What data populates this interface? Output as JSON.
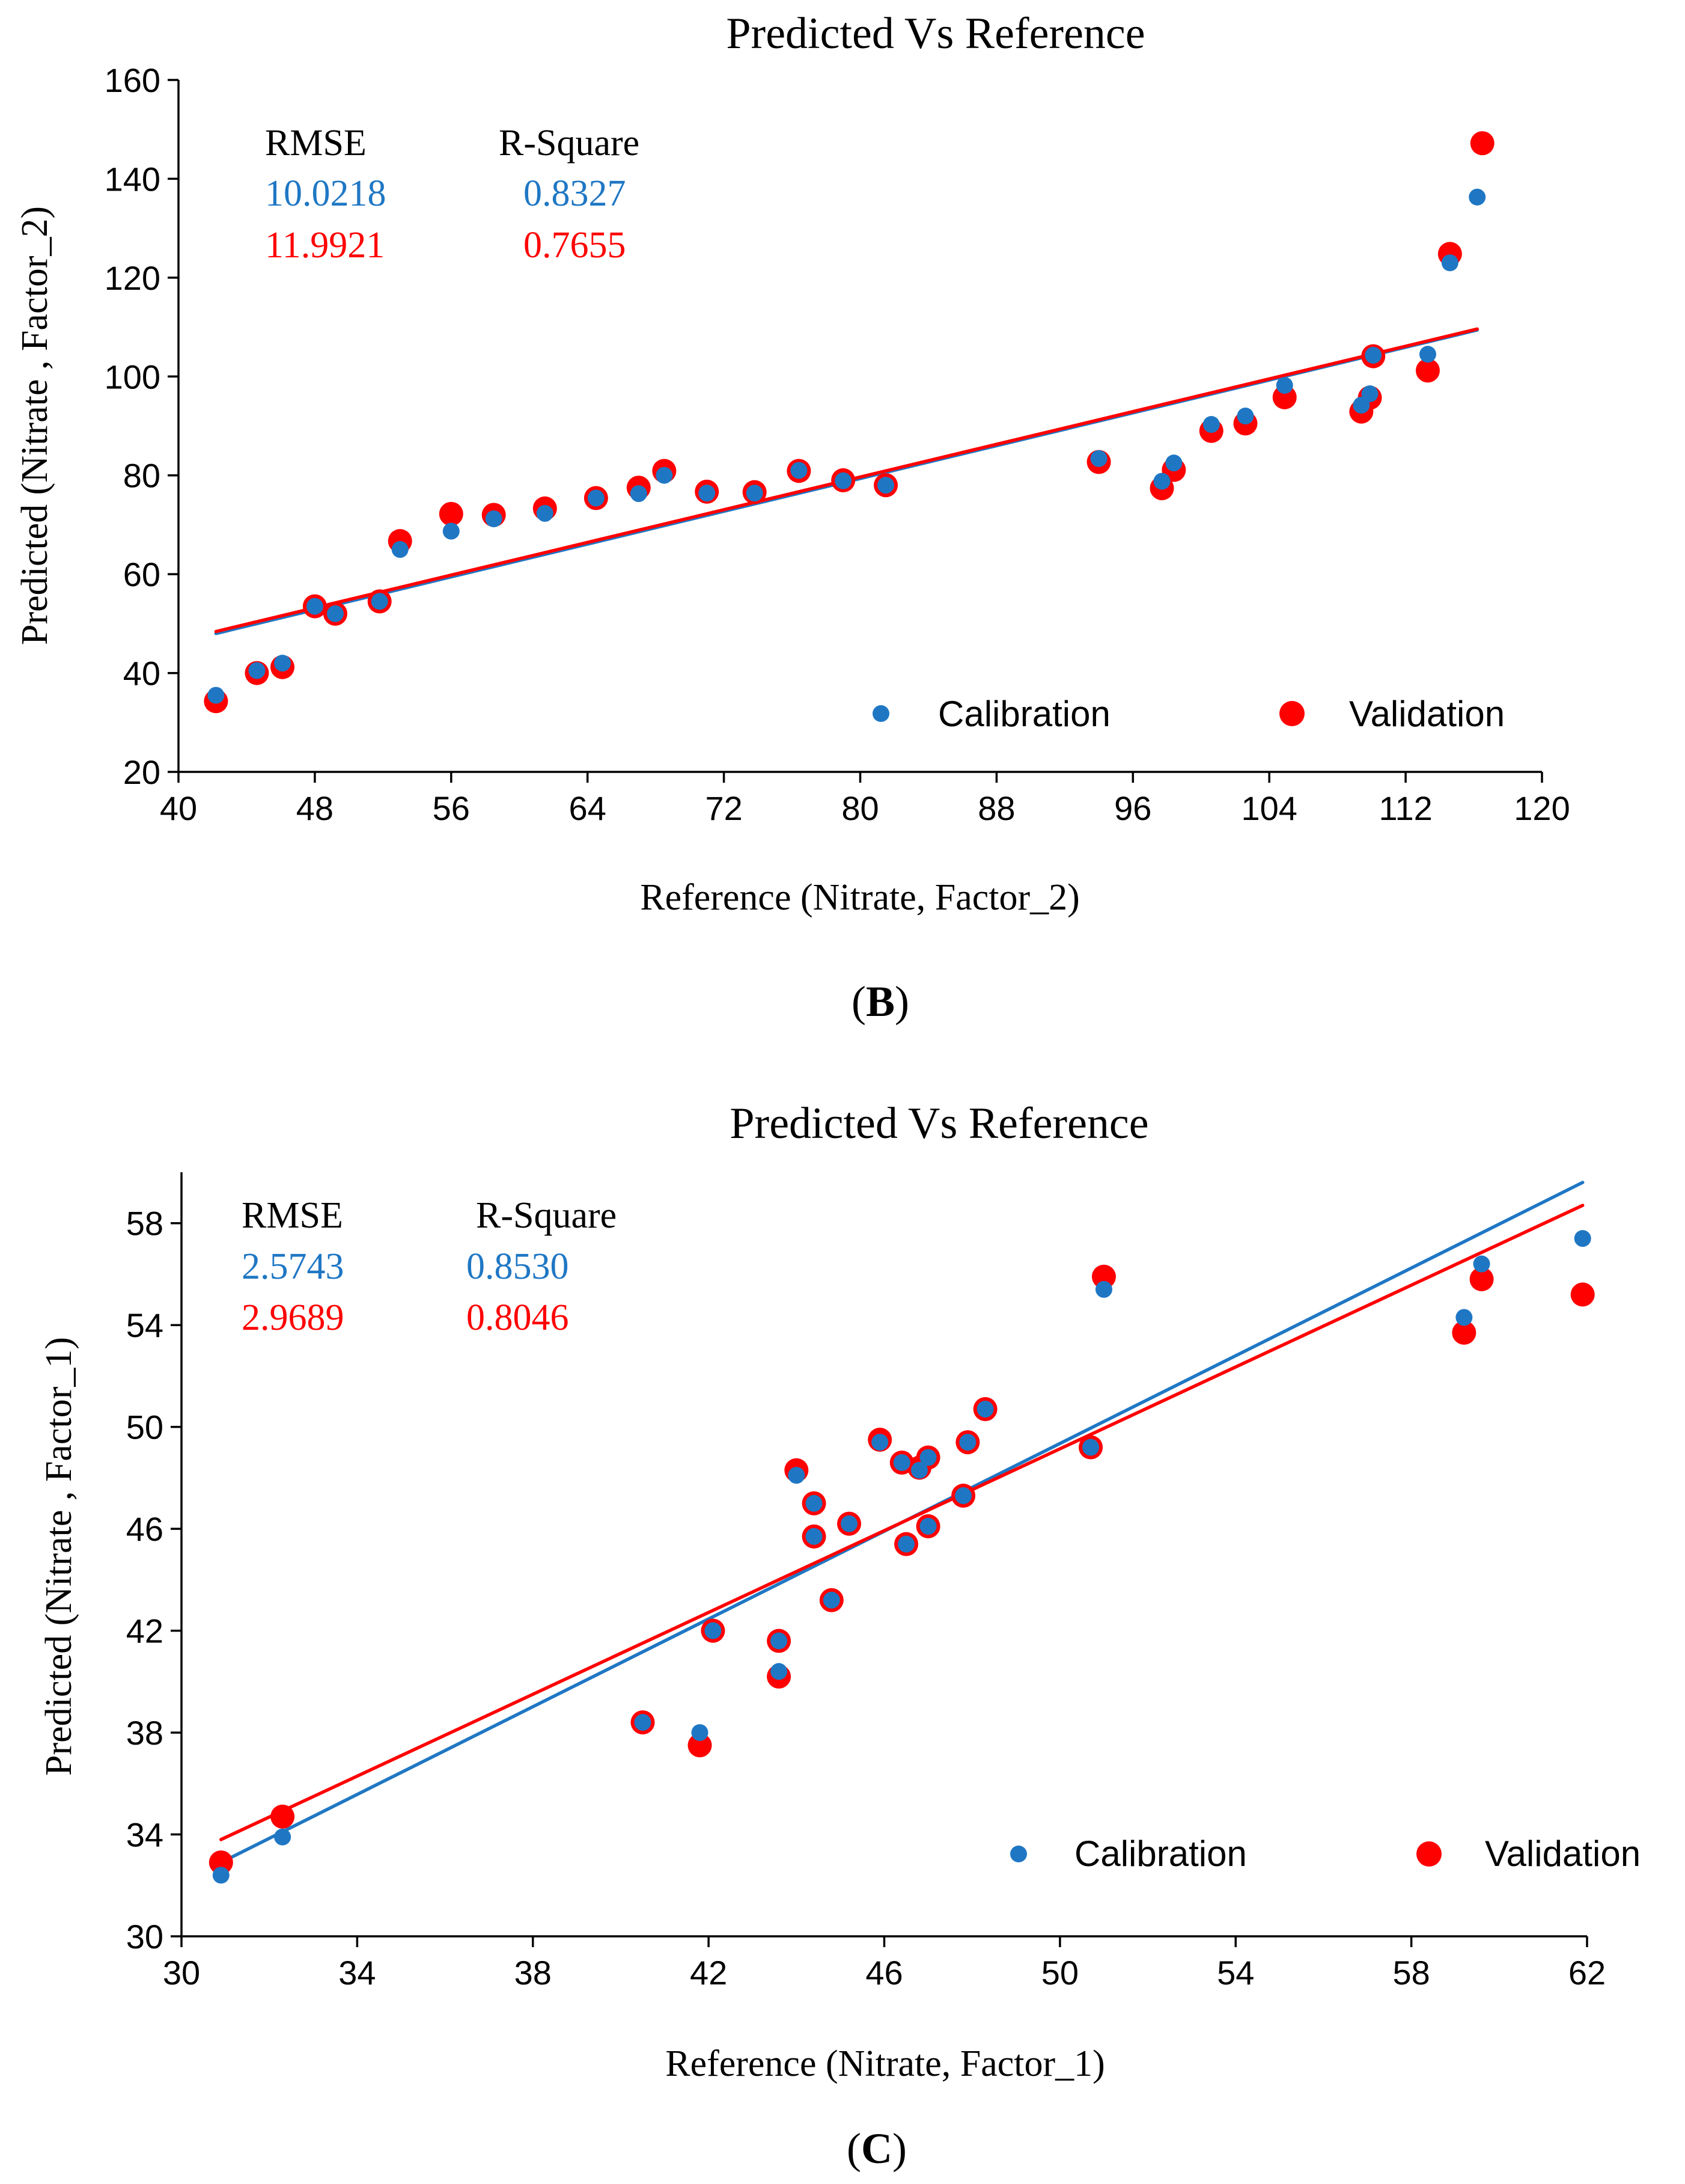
{
  "colors": {
    "calibration": "#1f77c4",
    "validation": "#ff0000",
    "axis": "#000000"
  },
  "chart_data": [
    {
      "type": "scatter",
      "title": "Predicted Vs Reference",
      "xlabel": "Reference (Nitrate, Factor_2)",
      "ylabel": "Predicted (Nitrate , Factor_2)",
      "xlim": [
        40,
        120
      ],
      "ylim": [
        20,
        160
      ],
      "xticks": [
        40,
        48,
        56,
        64,
        72,
        80,
        88,
        96,
        104,
        112,
        120
      ],
      "yticks": [
        20,
        40,
        60,
        80,
        100,
        120,
        140,
        160
      ],
      "panel_label_open": "(",
      "panel_label_letter": "B",
      "panel_label_close": ")",
      "stats": {
        "rmse_header": "RMSE",
        "r2_header": "R-Square",
        "calibration_rmse": "10.0218",
        "calibration_r2": "0.8327",
        "validation_rmse": "11.9921",
        "validation_r2": "0.7655"
      },
      "legend": [
        "Calibration",
        "Validation"
      ],
      "series": [
        {
          "name": "Calibration",
          "points": [
            [
              42.2,
              35.5
            ],
            [
              44.6,
              40.5
            ],
            [
              46.1,
              42.0
            ],
            [
              48.0,
              53.5
            ],
            [
              49.2,
              52.0
            ],
            [
              51.8,
              54.5
            ],
            [
              53.0,
              65.0
            ],
            [
              56.0,
              68.7
            ],
            [
              58.5,
              71.2
            ],
            [
              61.5,
              72.3
            ],
            [
              64.5,
              75.4
            ],
            [
              67.0,
              76.3
            ],
            [
              68.5,
              80.0
            ],
            [
              71.0,
              76.4
            ],
            [
              73.8,
              76.4
            ],
            [
              76.4,
              81.0
            ],
            [
              79.0,
              78.9
            ],
            [
              81.5,
              78.0
            ],
            [
              94.0,
              83.4
            ],
            [
              97.7,
              78.8
            ],
            [
              98.4,
              82.5
            ],
            [
              100.6,
              90.3
            ],
            [
              102.6,
              92.0
            ],
            [
              104.9,
              98.2
            ],
            [
              109.4,
              94.2
            ],
            [
              109.9,
              96.5
            ],
            [
              110.1,
              104.3
            ],
            [
              113.3,
              104.5
            ],
            [
              114.6,
              123.0
            ],
            [
              116.2,
              136.3
            ]
          ]
        },
        {
          "name": "Validation",
          "points": [
            [
              42.2,
              34.3
            ],
            [
              44.6,
              40.0
            ],
            [
              46.1,
              41.2
            ],
            [
              48.0,
              53.5
            ],
            [
              49.2,
              52.0
            ],
            [
              51.8,
              54.5
            ],
            [
              53.0,
              66.7
            ],
            [
              56.0,
              72.2
            ],
            [
              58.5,
              72.0
            ],
            [
              61.5,
              73.3
            ],
            [
              64.5,
              75.4
            ],
            [
              67.0,
              77.5
            ],
            [
              68.5,
              80.9
            ],
            [
              71.0,
              76.7
            ],
            [
              73.8,
              76.6
            ],
            [
              76.4,
              80.9
            ],
            [
              79.0,
              79.0
            ],
            [
              81.5,
              78.0
            ],
            [
              94.0,
              82.7
            ],
            [
              97.7,
              77.4
            ],
            [
              98.4,
              81.1
            ],
            [
              100.6,
              89.0
            ],
            [
              102.6,
              90.5
            ],
            [
              104.9,
              95.8
            ],
            [
              109.4,
              92.9
            ],
            [
              109.9,
              95.7
            ],
            [
              110.1,
              104.1
            ],
            [
              113.3,
              101.2
            ],
            [
              114.6,
              124.8
            ],
            [
              116.5,
              147.2
            ]
          ]
        }
      ],
      "trendlines": [
        {
          "name": "Calibration",
          "x": [
            42.2,
            116.2
          ],
          "y": [
            48.0,
            109.4
          ]
        },
        {
          "name": "Validation",
          "x": [
            42.2,
            116.2
          ],
          "y": [
            48.4,
            109.6
          ]
        }
      ]
    },
    {
      "type": "scatter",
      "title": "Predicted Vs Reference",
      "xlabel": "Reference (Nitrate, Factor_1)",
      "ylabel": "Predicted (Nitrate , Factor_1)",
      "xlim": [
        30,
        62
      ],
      "ylim": [
        30,
        60
      ],
      "xticks": [
        30,
        34,
        38,
        42,
        46,
        50,
        54,
        58,
        62
      ],
      "yticks": [
        30,
        34,
        38,
        42,
        46,
        50,
        54,
        58
      ],
      "panel_label_open": "(",
      "panel_label_letter": "C",
      "panel_label_close": ")",
      "stats": {
        "rmse_header": "RMSE",
        "r2_header": "R-Square",
        "calibration_rmse": "2.5743",
        "calibration_r2": "0.8530",
        "validation_rmse": "2.9689",
        "validation_r2": "0.8046"
      },
      "legend": [
        "Calibration",
        "Validation"
      ],
      "series": [
        {
          "name": "Calibration",
          "points": [
            [
              30.9,
              32.4
            ],
            [
              32.3,
              33.9
            ],
            [
              40.5,
              38.4
            ],
            [
              41.8,
              38.0
            ],
            [
              42.1,
              42.0
            ],
            [
              43.6,
              41.6
            ],
            [
              43.6,
              40.4
            ],
            [
              44.0,
              48.1
            ],
            [
              44.4,
              47.0
            ],
            [
              44.4,
              45.7
            ],
            [
              44.8,
              43.2
            ],
            [
              45.2,
              46.2
            ],
            [
              45.9,
              49.4
            ],
            [
              46.4,
              48.6
            ],
            [
              46.5,
              45.4
            ],
            [
              46.8,
              48.3
            ],
            [
              47.0,
              48.8
            ],
            [
              47.0,
              46.1
            ],
            [
              47.8,
              47.3
            ],
            [
              47.9,
              49.4
            ],
            [
              48.3,
              50.7
            ],
            [
              50.7,
              49.2
            ],
            [
              51.0,
              55.4
            ],
            [
              59.2,
              54.3
            ],
            [
              59.6,
              56.4
            ],
            [
              61.9,
              57.4
            ]
          ]
        },
        {
          "name": "Validation",
          "points": [
            [
              30.9,
              32.9
            ],
            [
              32.3,
              34.7
            ],
            [
              40.5,
              38.4
            ],
            [
              41.8,
              37.5
            ],
            [
              42.1,
              42.0
            ],
            [
              43.6,
              41.6
            ],
            [
              43.6,
              40.2
            ],
            [
              44.0,
              48.3
            ],
            [
              44.4,
              47.0
            ],
            [
              44.4,
              45.7
            ],
            [
              44.8,
              43.2
            ],
            [
              45.2,
              46.2
            ],
            [
              45.9,
              49.5
            ],
            [
              46.4,
              48.6
            ],
            [
              46.5,
              45.4
            ],
            [
              46.8,
              48.4
            ],
            [
              47.0,
              48.8
            ],
            [
              47.0,
              46.1
            ],
            [
              47.8,
              47.3
            ],
            [
              47.9,
              49.4
            ],
            [
              48.3,
              50.7
            ],
            [
              50.7,
              49.2
            ],
            [
              51.0,
              55.9
            ],
            [
              59.2,
              53.7
            ],
            [
              59.6,
              55.8
            ],
            [
              61.9,
              55.2
            ]
          ]
        }
      ],
      "trendlines": [
        {
          "name": "Calibration",
          "x": [
            30.9,
            61.9
          ],
          "y": [
            32.9,
            59.6
          ]
        },
        {
          "name": "Validation",
          "x": [
            30.9,
            61.9
          ],
          "y": [
            33.8,
            58.7
          ]
        }
      ]
    }
  ]
}
